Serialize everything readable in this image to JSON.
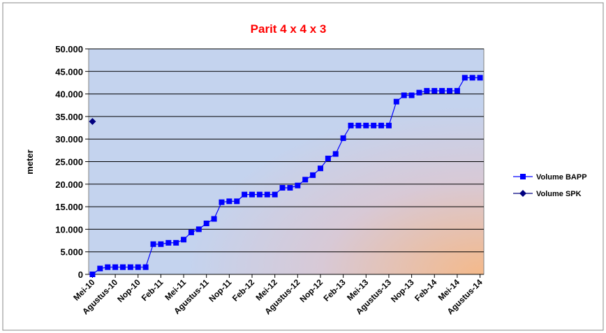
{
  "chart_data": {
    "type": "line",
    "title": "Parit 4 x 4 x 3",
    "y_label": "meter",
    "categories": [
      "Mei-10",
      null,
      null,
      "Agustus-10",
      null,
      null,
      "Nop-10",
      null,
      null,
      "Feb-11",
      null,
      null,
      "Mei-11",
      null,
      null,
      "Agustus-11",
      null,
      null,
      "Nop-11",
      null,
      null,
      "Feb-12",
      null,
      null,
      "Mei-12",
      null,
      null,
      "Agustus-12",
      null,
      null,
      "Nop-12",
      null,
      null,
      "Feb-13",
      null,
      null,
      "Mei-13",
      null,
      null,
      "Agustus-13",
      null,
      null,
      "Nop-13",
      null,
      null,
      "Feb-14",
      null,
      null,
      "Mei-14",
      null,
      null,
      "Agustus-14"
    ],
    "series": [
      {
        "name": "Volume BAPP",
        "color": "#0000ff",
        "marker": "square",
        "values": [
          0,
          1300,
          1600,
          1600,
          1600,
          1600,
          1600,
          1600,
          6700,
          6700,
          7000,
          7000,
          7700,
          9300,
          10000,
          11300,
          12300,
          16000,
          16200,
          16200,
          17700,
          17700,
          17700,
          17700,
          17700,
          19200,
          19200,
          19700,
          21000,
          22000,
          23500,
          25700,
          26700,
          30200,
          33000,
          33000,
          33000,
          33000,
          33000,
          33000,
          38300,
          39700,
          39700,
          40300,
          40700,
          40700,
          40700,
          40700,
          40700,
          43600,
          43600,
          43600
        ]
      },
      {
        "name": "Volume SPK",
        "color": "#000080",
        "marker": "diamond",
        "values": [
          33900,
          null,
          null,
          null,
          null,
          null,
          null,
          null,
          null,
          null,
          null,
          null,
          null,
          null,
          null,
          null,
          null,
          null,
          null,
          null,
          null,
          null,
          null,
          null,
          null,
          null,
          null,
          null,
          null,
          null,
          null,
          null,
          null,
          null,
          null,
          null,
          null,
          null,
          null,
          null,
          null,
          null,
          null,
          null,
          null,
          null,
          null,
          null,
          null,
          null,
          null,
          null
        ]
      }
    ],
    "ylim": [
      0,
      50000
    ],
    "yticks": [
      {
        "value": 0,
        "label": "0"
      },
      {
        "value": 5000,
        "label": "5.000"
      },
      {
        "value": 10000,
        "label": "10.000"
      },
      {
        "value": 15000,
        "label": "15.000"
      },
      {
        "value": 20000,
        "label": "20.000"
      },
      {
        "value": 25000,
        "label": "25.000"
      },
      {
        "value": 30000,
        "label": "30.000"
      },
      {
        "value": 35000,
        "label": "35.000"
      },
      {
        "value": 40000,
        "label": "40.000"
      },
      {
        "value": 45000,
        "label": "45.000"
      },
      {
        "value": 50000,
        "label": "50.000"
      }
    ],
    "grid": true,
    "legend": "right"
  }
}
